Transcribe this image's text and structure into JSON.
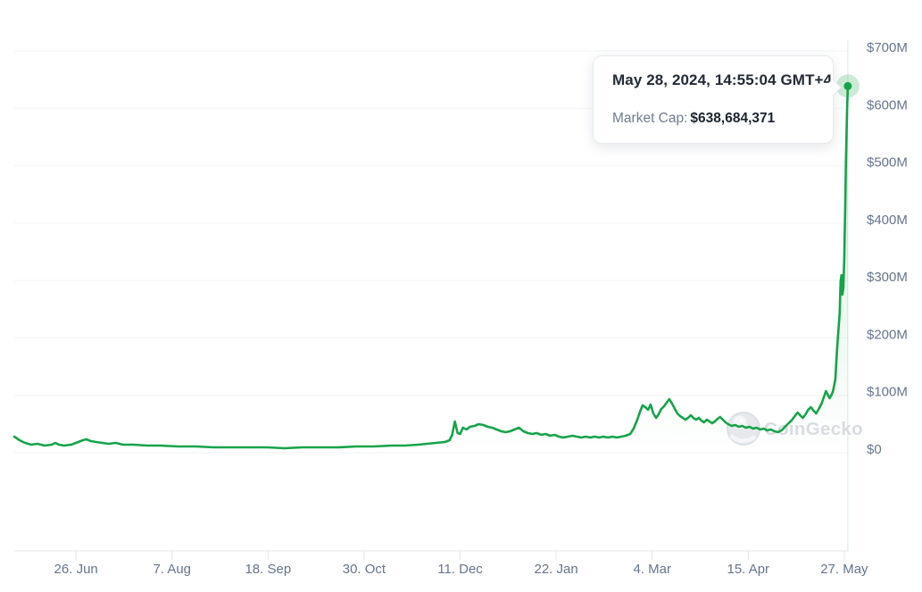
{
  "tooltip": {
    "date": "May 28, 2024, 14:55:04 GMT+4",
    "label": "Market Cap:",
    "value": "$638,684,371"
  },
  "watermark": {
    "text": "CoinGecko"
  },
  "colors": {
    "line": "#16a34a",
    "marker_halo": "rgba(22,163,74,0.22)",
    "fill_top": "rgba(22,163,74,0.20)",
    "fill_bottom": "rgba(22,163,74,0)",
    "grid": "#f1f3f5",
    "axis": "#e4e7eb",
    "crosshair": "#e4e7eb",
    "label": "#66758c",
    "watermark_gray": "#d3d7dc",
    "tooltip_title": "#222b36",
    "tooltip_label": "#6e7c8d"
  },
  "chart_data": {
    "type": "line",
    "title": "",
    "xlabel": "",
    "ylabel": "",
    "unit": "USD millions",
    "x_start_date": "2023-05-30",
    "x_end_date": "2024-05-28",
    "x_range_days": [
      0,
      365
    ],
    "y_range": [
      0,
      700
    ],
    "grid": true,
    "legend": false,
    "y_ticks": [
      {
        "label": "$700M",
        "value": 700
      },
      {
        "label": "$600M",
        "value": 600
      },
      {
        "label": "$500M",
        "value": 500
      },
      {
        "label": "$400M",
        "value": 400
      },
      {
        "label": "$300M",
        "value": 300
      },
      {
        "label": "$200M",
        "value": 200
      },
      {
        "label": "$100M",
        "value": 100
      },
      {
        "label": "$0",
        "value": 0
      }
    ],
    "x_ticks": [
      {
        "label": "26. Jun",
        "day": 27
      },
      {
        "label": "7. Aug",
        "day": 69
      },
      {
        "label": "18. Sep",
        "day": 111
      },
      {
        "label": "30. Oct",
        "day": 153
      },
      {
        "label": "11. Dec",
        "day": 195
      },
      {
        "label": "22. Jan",
        "day": 237
      },
      {
        "label": "4. Mar",
        "day": 279
      },
      {
        "label": "15. Apr",
        "day": 321
      },
      {
        "label": "27. May",
        "day": 363
      }
    ],
    "series": [
      {
        "name": "Market Cap",
        "points": [
          [
            0,
            28
          ],
          [
            2.3,
            21.8
          ],
          [
            4.7,
            17.1
          ],
          [
            7.4,
            14
          ],
          [
            10.1,
            15.6
          ],
          [
            13.2,
            12.4
          ],
          [
            16.4,
            14
          ],
          [
            17.9,
            17.1
          ],
          [
            19.5,
            14
          ],
          [
            21.8,
            12.4
          ],
          [
            24.9,
            14
          ],
          [
            28,
            18.7
          ],
          [
            30,
            21.8
          ],
          [
            31.5,
            23.3
          ],
          [
            33.5,
            20.2
          ],
          [
            35.8,
            18.7
          ],
          [
            38.5,
            17.1
          ],
          [
            41.3,
            15.6
          ],
          [
            44.4,
            17.1
          ],
          [
            47.5,
            14
          ],
          [
            52.2,
            14
          ],
          [
            58,
            12.4
          ],
          [
            63.8,
            12.4
          ],
          [
            71.6,
            10.9
          ],
          [
            79.4,
            10.9
          ],
          [
            87.2,
            9.3
          ],
          [
            95,
            9.3
          ],
          [
            102.8,
            9.3
          ],
          [
            110.6,
            9.3
          ],
          [
            118.3,
            7.8
          ],
          [
            126.1,
            9.3
          ],
          [
            133.9,
            9.3
          ],
          [
            141.7,
            9.3
          ],
          [
            149.5,
            10.9
          ],
          [
            157.3,
            10.9
          ],
          [
            165.1,
            12.4
          ],
          [
            170.9,
            12.4
          ],
          [
            176.7,
            14
          ],
          [
            180.6,
            15.6
          ],
          [
            184.5,
            17.1
          ],
          [
            188.4,
            18.7
          ],
          [
            190.4,
            21.8
          ],
          [
            191.5,
            31.1
          ],
          [
            192.7,
            54.4
          ],
          [
            193.9,
            34.2
          ],
          [
            195,
            32.7
          ],
          [
            196.2,
            43.6
          ],
          [
            197.8,
            40.4
          ],
          [
            199.3,
            45.1
          ],
          [
            201.3,
            46.7
          ],
          [
            203.2,
            49.8
          ],
          [
            205.2,
            48.2
          ],
          [
            207.1,
            45.1
          ],
          [
            209,
            43.6
          ],
          [
            211,
            40.4
          ],
          [
            213,
            37.3
          ],
          [
            214.9,
            35.8
          ],
          [
            216.8,
            37.3
          ],
          [
            218.8,
            40.4
          ],
          [
            220.7,
            43.6
          ],
          [
            222.7,
            37.3
          ],
          [
            224.6,
            34.2
          ],
          [
            226.6,
            32.7
          ],
          [
            228.5,
            34.2
          ],
          [
            230.5,
            31.1
          ],
          [
            232.4,
            32.7
          ],
          [
            234.4,
            29.5
          ],
          [
            236.3,
            31.1
          ],
          [
            238.2,
            28
          ],
          [
            240.2,
            26.4
          ],
          [
            242.1,
            28
          ],
          [
            244.1,
            29.5
          ],
          [
            246,
            28
          ],
          [
            248,
            26.4
          ],
          [
            249.9,
            28
          ],
          [
            251.9,
            26.4
          ],
          [
            253.8,
            28
          ],
          [
            255.8,
            26.4
          ],
          [
            257.7,
            28
          ],
          [
            259.6,
            26.4
          ],
          [
            261.6,
            28
          ],
          [
            263.5,
            26.4
          ],
          [
            265.5,
            28
          ],
          [
            267.4,
            29.5
          ],
          [
            269.4,
            32.7
          ],
          [
            270.9,
            42
          ],
          [
            272.5,
            57.5
          ],
          [
            273.7,
            71.5
          ],
          [
            274.8,
            82.4
          ],
          [
            276,
            79.3
          ],
          [
            277.2,
            74.6
          ],
          [
            278.3,
            84
          ],
          [
            279.5,
            68.4
          ],
          [
            280.7,
            60.6
          ],
          [
            281.8,
            66.9
          ],
          [
            283,
            76.2
          ],
          [
            284.2,
            80.9
          ],
          [
            285.3,
            87.1
          ],
          [
            286.5,
            93.3
          ],
          [
            287.7,
            85.5
          ],
          [
            288.9,
            76.2
          ],
          [
            290,
            68.4
          ],
          [
            291.2,
            63.8
          ],
          [
            292.4,
            60.6
          ],
          [
            293.5,
            57.5
          ],
          [
            294.7,
            60.6
          ],
          [
            295.9,
            65.3
          ],
          [
            297,
            60.6
          ],
          [
            298.2,
            57.5
          ],
          [
            299.4,
            60.6
          ],
          [
            300.5,
            56
          ],
          [
            301.7,
            52.9
          ],
          [
            302.9,
            57.5
          ],
          [
            304.1,
            54.4
          ],
          [
            305.2,
            51.3
          ],
          [
            306.4,
            54.4
          ],
          [
            307.6,
            59.1
          ],
          [
            308.7,
            62.2
          ],
          [
            309.9,
            57.5
          ],
          [
            311.1,
            52.9
          ],
          [
            312.2,
            49.8
          ],
          [
            313.8,
            46.7
          ],
          [
            315.3,
            48.2
          ],
          [
            316.9,
            45.1
          ],
          [
            318.4,
            46.7
          ],
          [
            320,
            43.6
          ],
          [
            321.6,
            45.1
          ],
          [
            323.1,
            42
          ],
          [
            324.7,
            43.6
          ],
          [
            326.2,
            40.4
          ],
          [
            327.8,
            42
          ],
          [
            329.3,
            38.9
          ],
          [
            330.9,
            40.4
          ],
          [
            332.5,
            37.3
          ],
          [
            334,
            35.8
          ],
          [
            335.6,
            38.9
          ],
          [
            337.1,
            45.1
          ],
          [
            338.7,
            51.3
          ],
          [
            340.2,
            57.5
          ],
          [
            341.4,
            63.8
          ],
          [
            342.6,
            70
          ],
          [
            343.7,
            65.3
          ],
          [
            344.9,
            60.6
          ],
          [
            346.1,
            66.9
          ],
          [
            347.2,
            74.6
          ],
          [
            348.4,
            79.3
          ],
          [
            349.6,
            73.1
          ],
          [
            350.7,
            68.4
          ],
          [
            351.9,
            76.2
          ],
          [
            353.1,
            85.5
          ],
          [
            354.2,
            98
          ],
          [
            355,
            107.3
          ],
          [
            355.8,
            101.1
          ],
          [
            356.6,
            94.9
          ],
          [
            357.3,
            99.5
          ],
          [
            358.1,
            107.3
          ],
          [
            359.1,
            127.5
          ],
          [
            359.9,
            182
          ],
          [
            361,
            244
          ],
          [
            361.4,
            298.6
          ],
          [
            361.8,
            309.5
          ],
          [
            362.2,
            275.3
          ],
          [
            362.6,
            287.7
          ],
          [
            363,
            337.5
          ],
          [
            363.4,
            423
          ],
          [
            363.8,
            516.3
          ],
          [
            364.2,
            594
          ],
          [
            364.56,
            638.68
          ]
        ]
      }
    ],
    "marker": {
      "day": 364.56,
      "value": 638.684371
    }
  }
}
